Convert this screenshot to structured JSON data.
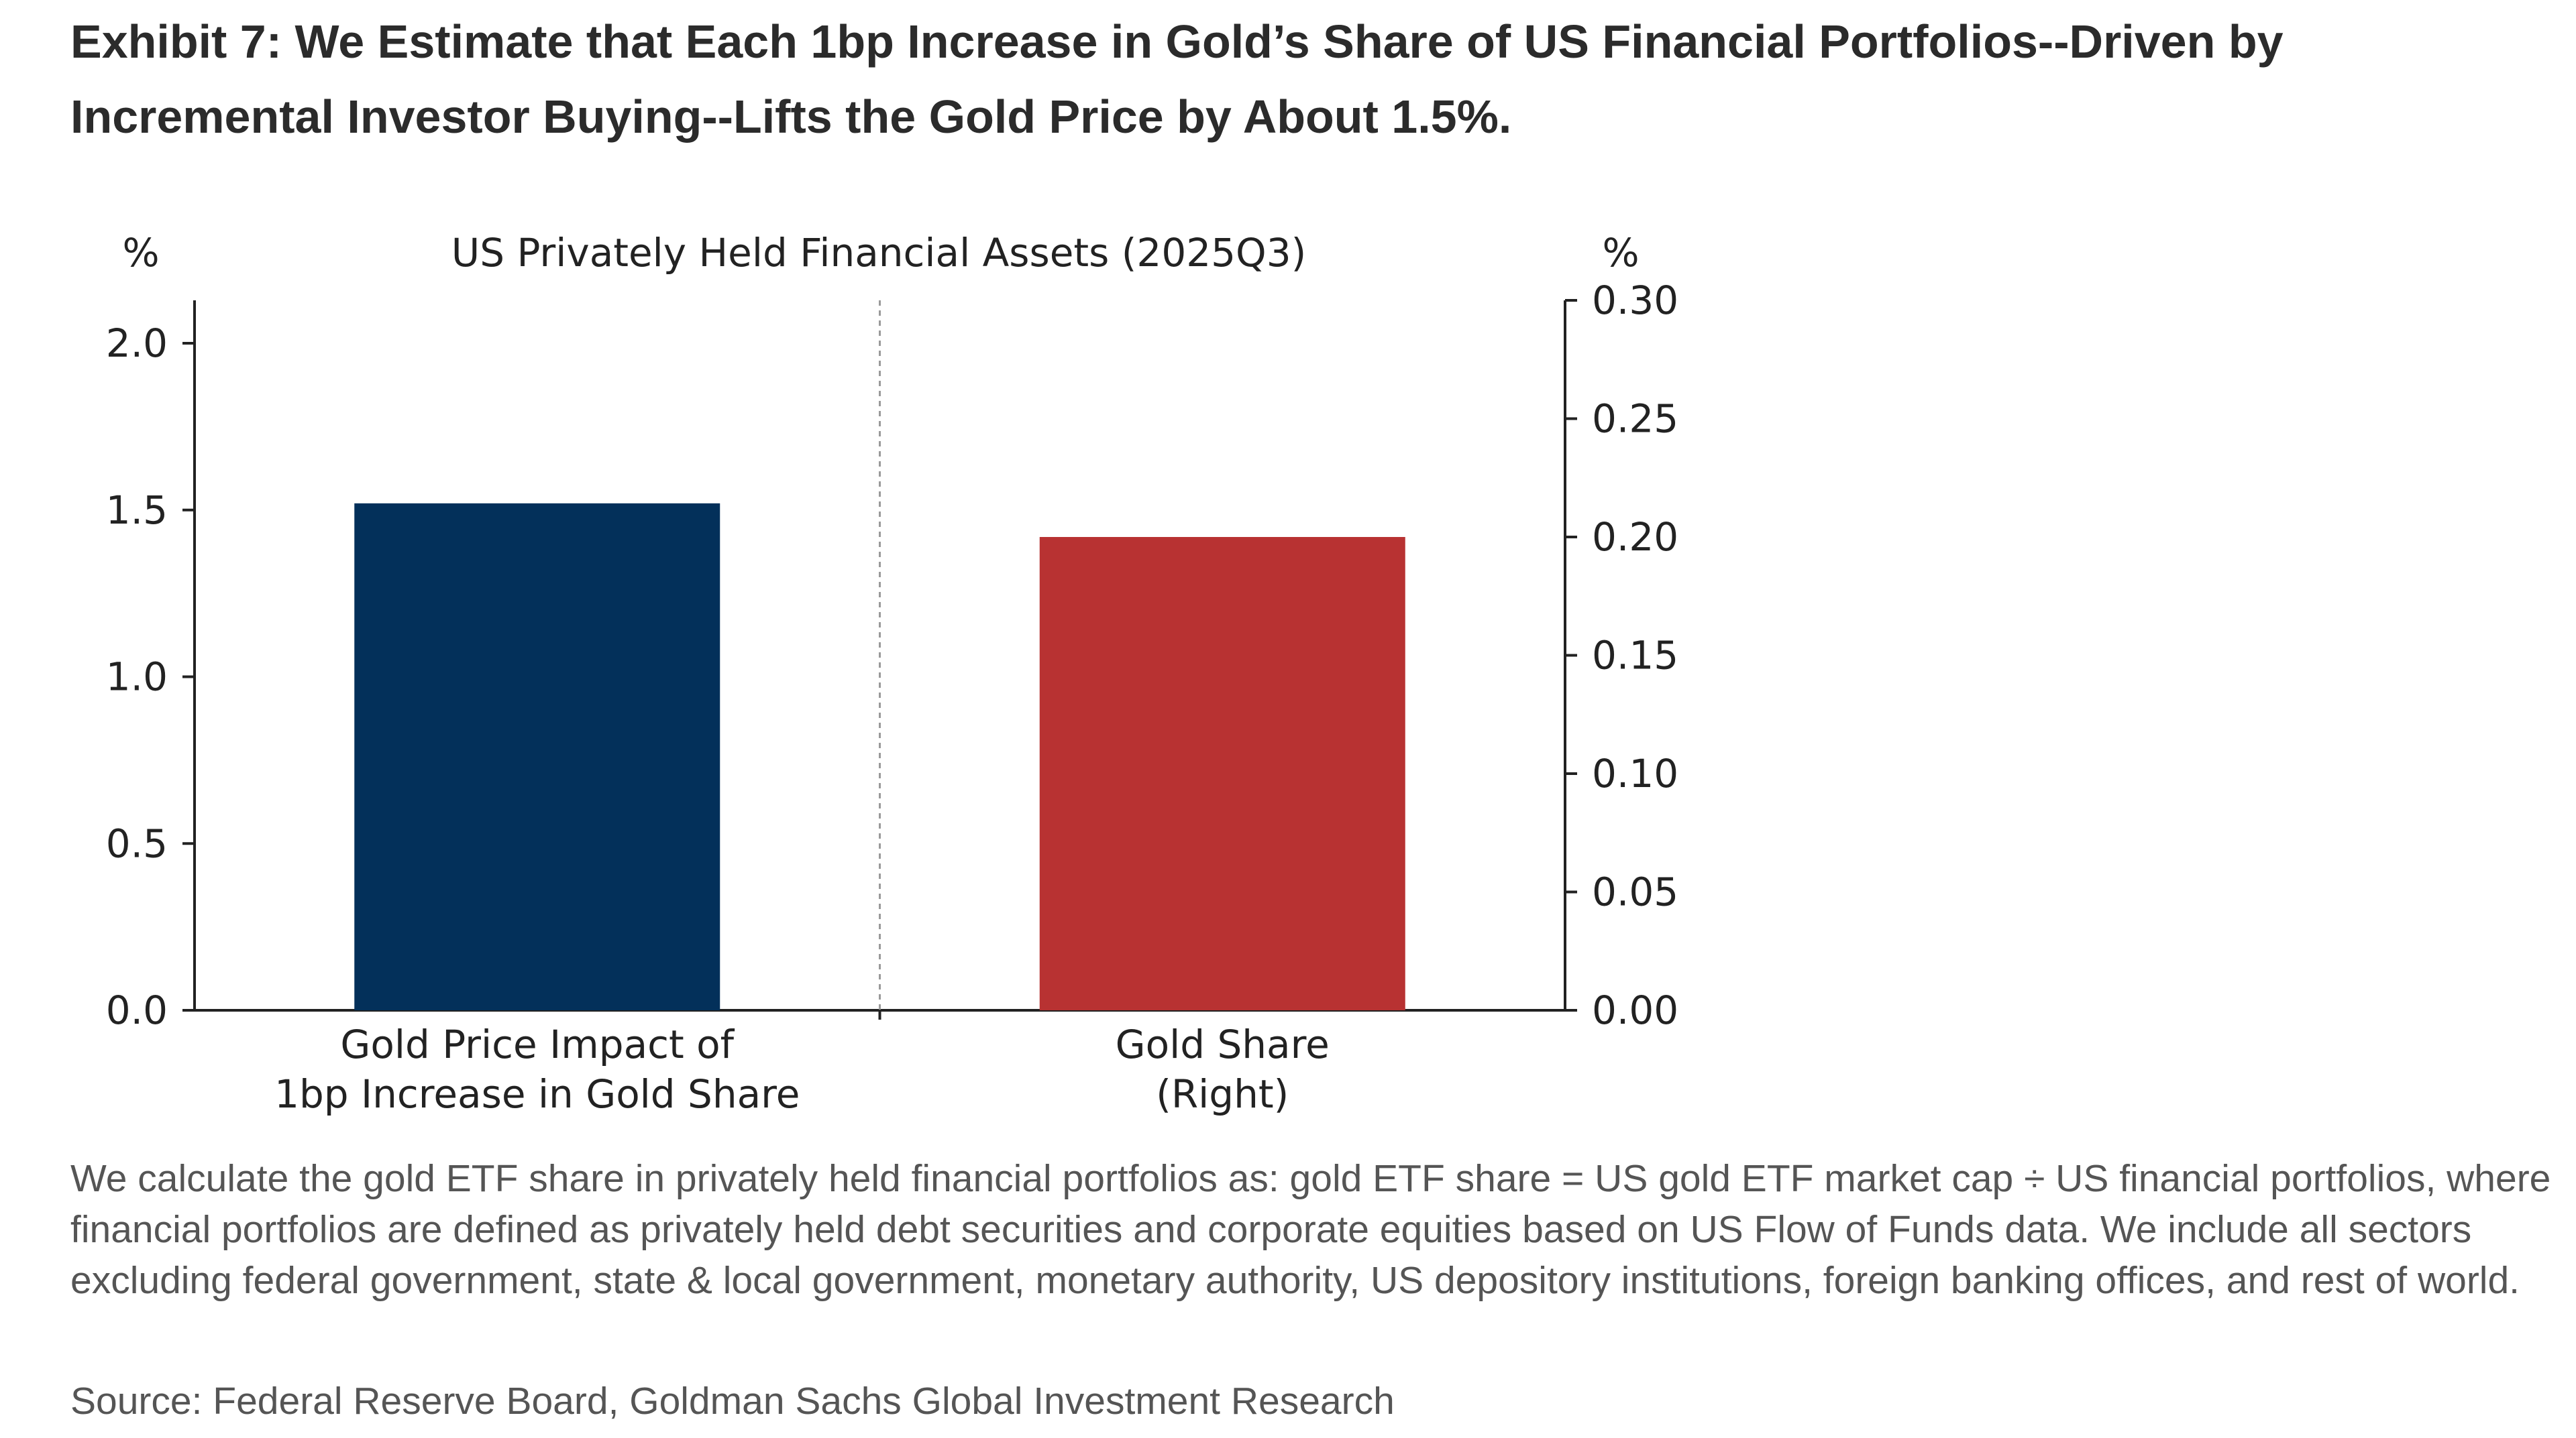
{
  "exhibit": {
    "title": "Exhibit 7: We Estimate that Each 1bp Increase in Gold’s Share of US Financial Portfolios--Driven by Incremental Investor Buying--Lifts the Gold Price by About 1.5%.",
    "footnote": "We calculate the gold ETF share in privately held financial portfolios as: gold ETF share = US gold ETF market cap ÷ US financial portfolios, where financial portfolios are defined as privately held debt securities and corporate equities based on US Flow of Funds data. We include all sectors excluding federal government, state & local government, monetary authority, US depository institutions, foreign banking offices, and rest of world.",
    "source": "Source: Federal Reserve Board, Goldman Sachs Global Investment Research"
  },
  "chart_data": {
    "type": "bar",
    "title": "US Privately Held Financial Assets (2025Q3)",
    "left_axis": {
      "unit_label": "%",
      "ylim": [
        0,
        2.0
      ],
      "ticks": [
        "0.0",
        "0.5",
        "1.0",
        "1.5",
        "2.0"
      ]
    },
    "right_axis": {
      "unit_label": "%",
      "ylim": [
        0,
        0.3
      ],
      "ticks": [
        "0.00",
        "0.05",
        "0.10",
        "0.15",
        "0.20",
        "0.25",
        "0.30"
      ]
    },
    "bars": [
      {
        "label_lines": [
          "Gold Price Impact of",
          "1bp Increase in Gold Share"
        ],
        "value": 1.52,
        "axis": "left",
        "color": "#03305a"
      },
      {
        "label_lines": [
          "Gold Share",
          "(Right)"
        ],
        "value": 0.2,
        "axis": "right",
        "color": "#b83232"
      }
    ],
    "divider": "dashed vertical line between bars",
    "grid": false
  }
}
